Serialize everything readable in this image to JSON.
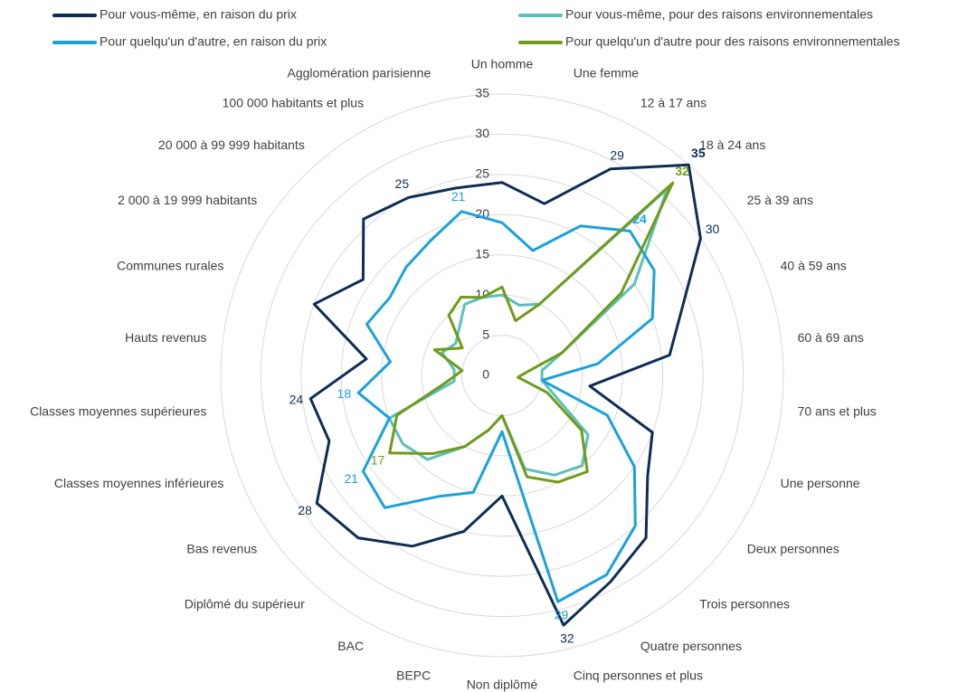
{
  "chart_data": {
    "type": "radar",
    "categories": [
      "Un homme",
      "Une femme",
      "12 à 17 ans",
      "18 à 24 ans",
      "25 à 39 ans",
      "40 à 59 ans",
      "60 à 69 ans",
      "70 ans et plus",
      "Une personne",
      "Deux personnes",
      "Trois personnes",
      "Quatre personnes",
      "Cinq personnes et plus",
      "Non diplômé",
      "BEPC",
      "BAC",
      "Diplômé du supérieur",
      "Bas revenus",
      "Classes moyennes inférieures",
      "Classes moyennes supérieures",
      "Hauts revenus",
      "Communes rurales",
      "2 000 à 19 999 habitants",
      "20 000 à 99 999 habitants",
      "100 000 habitants et plus",
      "Agglomération parisienne"
    ],
    "series": [
      {
        "name": "Pour vous-même, en raison du prix",
        "color": "#0e2d55",
        "values": [
          24,
          22,
          29,
          35,
          30,
          24,
          21,
          11,
          20,
          22,
          27,
          29,
          32,
          15,
          20,
          24,
          27,
          28,
          23,
          24,
          17,
          25,
          21,
          26,
          25,
          24
        ],
        "labeled_points": [
          2,
          3,
          4,
          12,
          17,
          19,
          24
        ]
      },
      {
        "name": "Pour vous-même, pour des raisons environnementales",
        "color": "#5dbfbb",
        "values": [
          10,
          9,
          10,
          31,
          20,
          8,
          5,
          5,
          7,
          13,
          15,
          14,
          12,
          5,
          7,
          10,
          14,
          15,
          15,
          6,
          6,
          8,
          7,
          8,
          10,
          10
        ],
        "labeled_points": []
      },
      {
        "name": "Pour quelqu'un d'autre, en raison du prix",
        "color": "#1ba1dc",
        "values": [
          19,
          16,
          21,
          24,
          23,
          20,
          12,
          5,
          14,
          20,
          25,
          28,
          29,
          7,
          15,
          17,
          22,
          21,
          15,
          18,
          14,
          18,
          17,
          18,
          19,
          21
        ],
        "labeled_points": [
          3,
          12,
          17,
          19,
          25
        ]
      },
      {
        "name": "Pour quelqu'un d'autre pour des raisons environnementales",
        "color": "#709b1b",
        "values": [
          11,
          7,
          10,
          32,
          18,
          8,
          3,
          2,
          6,
          12,
          16,
          15,
          13,
          5,
          7,
          10,
          13,
          17,
          14,
          7,
          5,
          9,
          6,
          10,
          11,
          10
        ],
        "labeled_points": [
          3,
          17
        ]
      }
    ],
    "rlim": [
      0,
      35
    ],
    "rticks": [
      0,
      5,
      10,
      15,
      20,
      25,
      30,
      35
    ],
    "grid": true
  }
}
